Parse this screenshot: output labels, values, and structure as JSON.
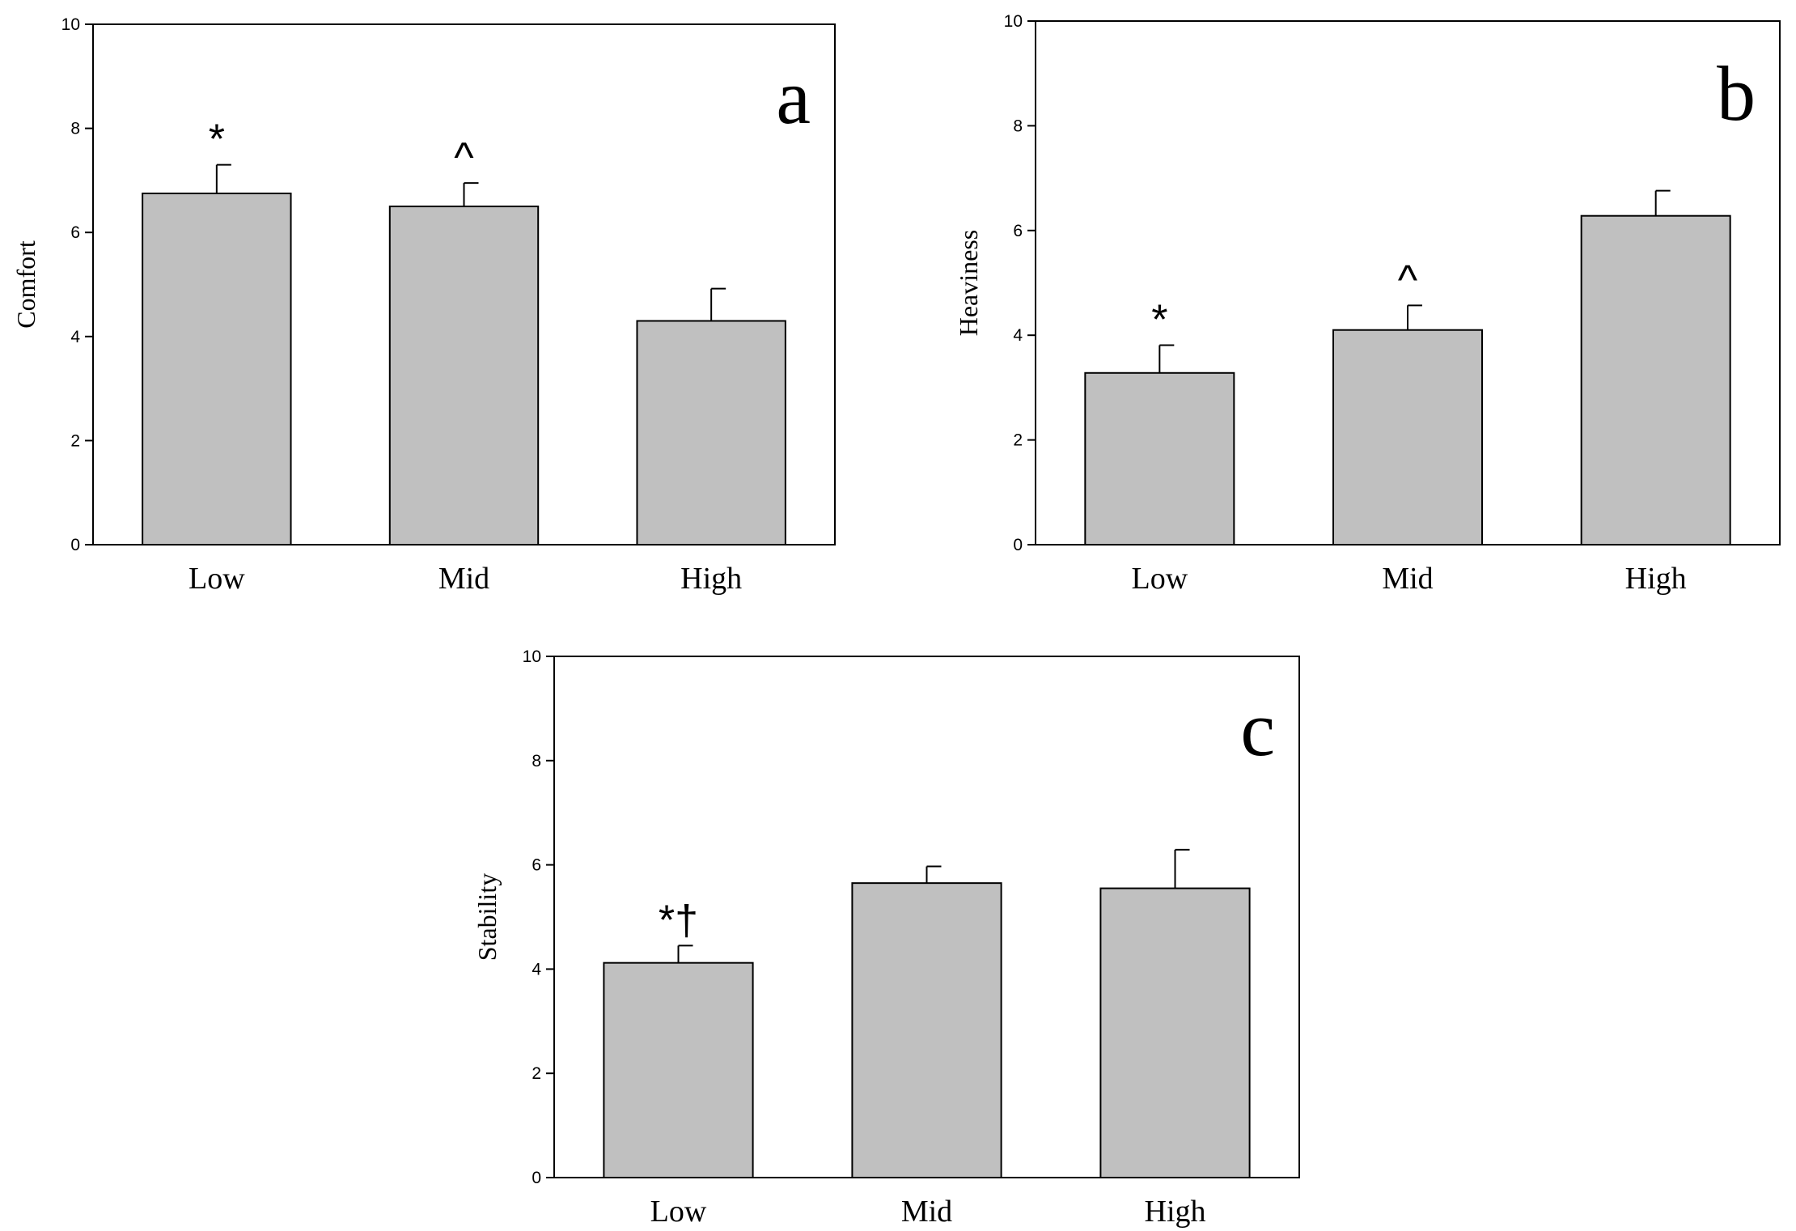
{
  "chart_data": [
    {
      "type": "bar",
      "panel_label": "a",
      "categories": [
        "Low",
        "Mid",
        "High"
      ],
      "values": [
        6.75,
        6.5,
        4.3
      ],
      "errors": [
        0.55,
        0.45,
        0.62
      ],
      "annotations": [
        "*",
        "^",
        ""
      ],
      "ylabel": "Comfort",
      "ylim": [
        0,
        10
      ],
      "yticks": [
        0,
        2,
        4,
        6,
        8,
        10
      ],
      "bar_color": "#c0c0c0"
    },
    {
      "type": "bar",
      "panel_label": "b",
      "categories": [
        "Low",
        "Mid",
        "High"
      ],
      "values": [
        3.28,
        4.1,
        6.28
      ],
      "errors": [
        0.53,
        0.47,
        0.48
      ],
      "annotations": [
        "*",
        "^",
        ""
      ],
      "ylabel": "Heaviness",
      "ylim": [
        0,
        10
      ],
      "yticks": [
        0,
        2,
        4,
        6,
        8,
        10
      ],
      "bar_color": "#c0c0c0"
    },
    {
      "type": "bar",
      "panel_label": "c",
      "categories": [
        "Low",
        "Mid",
        "High"
      ],
      "values": [
        4.12,
        5.65,
        5.55
      ],
      "errors": [
        0.33,
        0.32,
        0.74
      ],
      "annotations": [
        "*†",
        "",
        ""
      ],
      "ylabel": "Stability",
      "ylim": [
        0,
        10
      ],
      "yticks": [
        0,
        2,
        4,
        6,
        8,
        10
      ],
      "bar_color": "#c0c0c0"
    }
  ]
}
